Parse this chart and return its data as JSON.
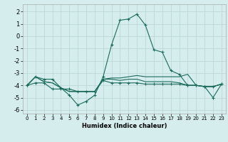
{
  "title": "",
  "xlabel": "Humidex (Indice chaleur)",
  "xlim": [
    -0.5,
    23.5
  ],
  "ylim": [
    -6.3,
    2.6
  ],
  "yticks": [
    -6,
    -5,
    -4,
    -3,
    -2,
    -1,
    0,
    1,
    2
  ],
  "xticks": [
    0,
    1,
    2,
    3,
    4,
    5,
    6,
    7,
    8,
    9,
    10,
    11,
    12,
    13,
    14,
    15,
    16,
    17,
    18,
    19,
    20,
    21,
    22,
    23
  ],
  "background_color": "#d6eded",
  "grid_color": "#b8d4d4",
  "line_color": "#1a6b5a",
  "series": [
    {
      "x": [
        0,
        1,
        2,
        3,
        4,
        5,
        6,
        7,
        8,
        9,
        10,
        11,
        12,
        13,
        14,
        15,
        16,
        17,
        18,
        19,
        20,
        21,
        22,
        23
      ],
      "y": [
        -4.0,
        -3.3,
        -3.5,
        -3.5,
        -4.2,
        -4.8,
        -5.6,
        -5.3,
        -4.8,
        -3.3,
        -0.7,
        1.3,
        1.4,
        1.8,
        0.9,
        -1.1,
        -1.3,
        -2.8,
        -3.1,
        -4.0,
        -4.0,
        -4.1,
        -5.0,
        -3.9
      ],
      "marker": "+"
    },
    {
      "x": [
        0,
        1,
        2,
        3,
        4,
        5,
        6,
        7,
        8,
        9,
        10,
        11,
        12,
        13,
        14,
        15,
        16,
        17,
        18,
        19,
        20,
        21,
        22,
        23
      ],
      "y": [
        -4.0,
        -3.3,
        -3.7,
        -3.8,
        -4.2,
        -4.5,
        -4.5,
        -4.5,
        -4.5,
        -3.5,
        -3.4,
        -3.4,
        -3.3,
        -3.2,
        -3.3,
        -3.3,
        -3.3,
        -3.3,
        -3.3,
        -3.1,
        -4.0,
        -4.1,
        -4.1,
        -3.9
      ],
      "marker": null
    },
    {
      "x": [
        0,
        1,
        2,
        3,
        4,
        5,
        6,
        7,
        8,
        9,
        10,
        11,
        12,
        13,
        14,
        15,
        16,
        17,
        18,
        19,
        20,
        21,
        22,
        23
      ],
      "y": [
        -4.0,
        -3.3,
        -3.7,
        -3.8,
        -4.2,
        -4.5,
        -4.5,
        -4.5,
        -4.5,
        -3.5,
        -3.5,
        -3.6,
        -3.5,
        -3.5,
        -3.7,
        -3.7,
        -3.7,
        -3.7,
        -3.8,
        -4.0,
        -4.0,
        -4.1,
        -4.1,
        -3.9
      ],
      "marker": null
    },
    {
      "x": [
        0,
        1,
        2,
        3,
        4,
        5,
        6,
        7,
        8,
        9,
        10,
        11,
        12,
        13,
        14,
        15,
        16,
        17,
        18,
        19,
        20,
        21,
        22,
        23
      ],
      "y": [
        -4.0,
        -3.8,
        -3.8,
        -4.3,
        -4.3,
        -4.3,
        -4.5,
        -4.5,
        -4.5,
        -3.6,
        -3.8,
        -3.8,
        -3.8,
        -3.8,
        -3.9,
        -3.9,
        -3.9,
        -3.9,
        -3.9,
        -4.0,
        -4.0,
        -4.1,
        -4.1,
        -3.9
      ],
      "marker": "+"
    }
  ]
}
